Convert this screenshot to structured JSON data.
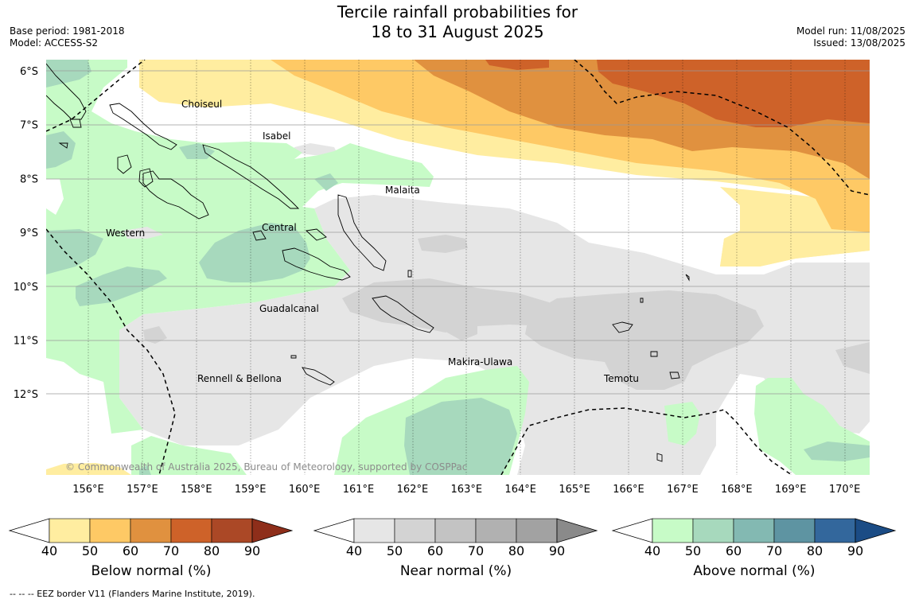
{
  "title": {
    "line1": "Tercile rainfall probabilities for",
    "line2": "18 to 31 August 2025"
  },
  "meta_left": {
    "base_period": "Base period: 1981-2018",
    "model": "Model: ACCESS-S2"
  },
  "meta_right": {
    "model_run": "Model run: 11/08/2025",
    "issued": "Issued: 13/08/2025"
  },
  "map": {
    "lon_labels": [
      "156°E",
      "157°E",
      "158°E",
      "159°E",
      "160°E",
      "161°E",
      "162°E",
      "163°E",
      "164°E",
      "165°E",
      "166°E",
      "167°E",
      "168°E",
      "169°E",
      "170°E"
    ],
    "lat_labels": [
      "6°S",
      "7°S",
      "8°S",
      "9°S",
      "10°S",
      "11°S",
      "12°S"
    ],
    "places": [
      {
        "name": "Choiseul"
      },
      {
        "name": "Isabel"
      },
      {
        "name": "Malaita"
      },
      {
        "name": "Western"
      },
      {
        "name": "Central"
      },
      {
        "name": "Guadalcanal"
      },
      {
        "name": "Makira-Ulawa"
      },
      {
        "name": "Rennell & Bellona"
      },
      {
        "name": "Temotu"
      }
    ],
    "copyright": "© Commonwealth of Australia 2025, Bureau of Meteorology, supported by COSPPac",
    "colors": {
      "below": [
        "#ffeda0",
        "#fec965",
        "#e0913f",
        "#ce6229",
        "#ab4826",
        "#8e2e1a"
      ],
      "near": [
        "#e6e6e6",
        "#d3d3d3",
        "#c3c3c3",
        "#b1b1b1",
        "#a2a2a2",
        "#8a8a8a"
      ],
      "above": [
        "#c7fbc7",
        "#a7d9bd",
        "#83b9b2",
        "#5e94a2",
        "#33679c",
        "#1b4c85"
      ]
    }
  },
  "colorbars": [
    {
      "title": "Below normal (%)",
      "ticks": [
        "40",
        "50",
        "60",
        "70",
        "80",
        "90"
      ]
    },
    {
      "title": "Near normal (%)",
      "ticks": [
        "40",
        "50",
        "60",
        "70",
        "80",
        "90"
      ]
    },
    {
      "title": "Above normal (%)",
      "ticks": [
        "40",
        "50",
        "60",
        "70",
        "80",
        "90"
      ]
    }
  ],
  "footnote": "--  --  -- EEZ border V11 (Flanders Marine Institute, 2019)."
}
